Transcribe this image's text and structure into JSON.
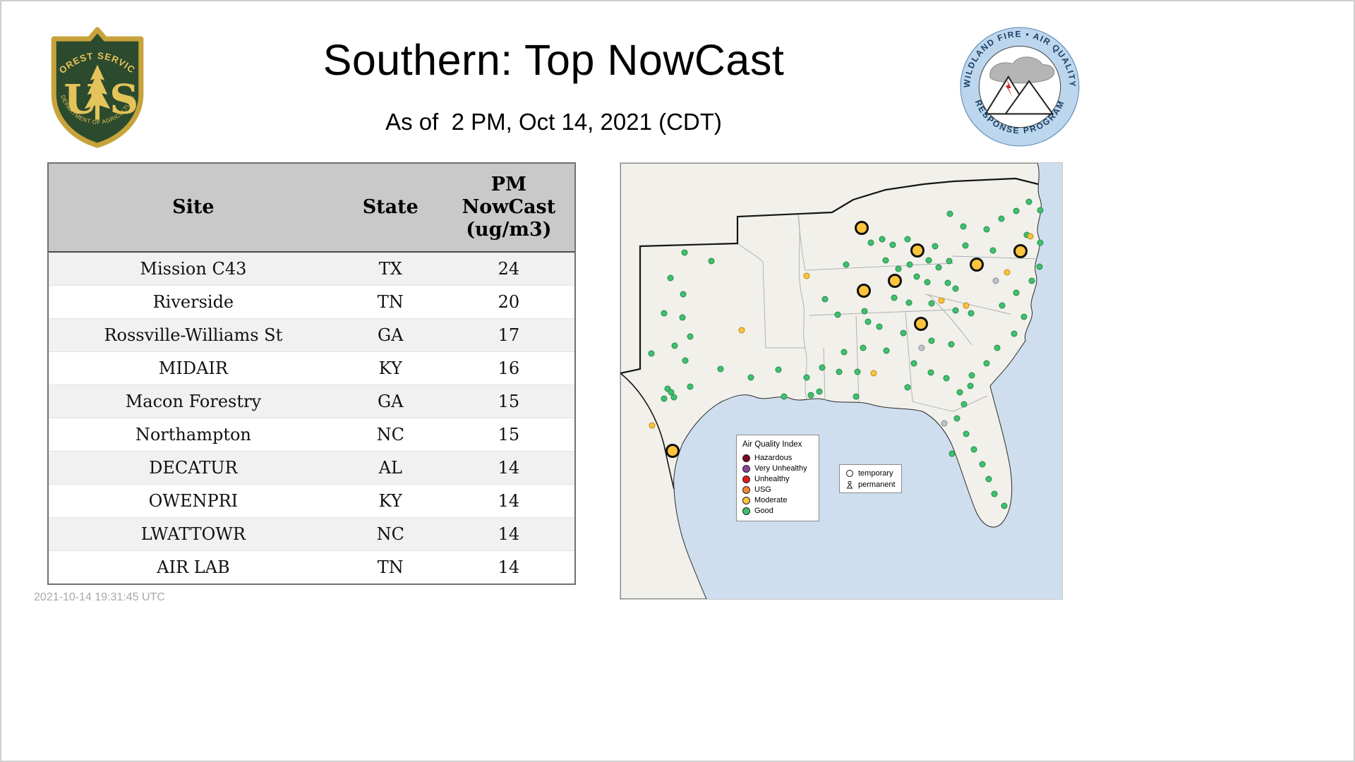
{
  "header": {
    "title": "Southern: Top NowCast",
    "subtitle": "As of  2 PM, Oct 14, 2021 (CDT)"
  },
  "logos": {
    "usfs": {
      "top_text": "FOREST SERVICE",
      "letter_u": "U",
      "letter_s": "S",
      "bottom_text": "DEPARTMENT OF AGRICULTURE"
    },
    "program": {
      "top_text": "WILDLAND FIRE • AIR QUALITY",
      "bottom_text": "RESPONSE PROGRAM"
    }
  },
  "table": {
    "columns": [
      "Site",
      "State",
      "PM\nNowCast\n(ug/m3)"
    ],
    "rows": [
      {
        "site": "Mission C43",
        "state": "TX",
        "value": "24"
      },
      {
        "site": "Riverside",
        "state": "TN",
        "value": "20"
      },
      {
        "site": "Rossville-Williams St",
        "state": "GA",
        "value": "17"
      },
      {
        "site": "MIDAIR",
        "state": "KY",
        "value": "16"
      },
      {
        "site": "Macon Forestry",
        "state": "GA",
        "value": "15"
      },
      {
        "site": "Northampton",
        "state": "NC",
        "value": "15"
      },
      {
        "site": "DECATUR",
        "state": "AL",
        "value": "14"
      },
      {
        "site": "OWENPRI",
        "state": "KY",
        "value": "14"
      },
      {
        "site": "LWATTOWR",
        "state": "NC",
        "value": "14"
      },
      {
        "site": "AIR LAB",
        "state": "TN",
        "value": "14"
      }
    ]
  },
  "map": {
    "legend": {
      "title": "Air Quality Index",
      "items": [
        {
          "label": "Hazardous",
          "color": "#7e0023"
        },
        {
          "label": "Very Unhealthy",
          "color": "#8f3f97"
        },
        {
          "label": "Unhealthy",
          "color": "#e31a1c"
        },
        {
          "label": "USG",
          "color": "#f58634"
        },
        {
          "label": "Moderate",
          "color": "#fcc33c"
        },
        {
          "label": "Good",
          "color": "#3ec16e"
        }
      ]
    },
    "symbol_legend": [
      {
        "symbol": "circle",
        "label": "temporary"
      },
      {
        "symbol": "person",
        "label": "permanent"
      }
    ],
    "aqi_colors": {
      "good": "#3ec16e",
      "moderate": "#fcc33c",
      "na": "#bcc3c9"
    },
    "dots": [
      [
        91,
        127,
        "g"
      ],
      [
        129,
        139,
        "g"
      ],
      [
        71,
        163,
        "g"
      ],
      [
        89,
        186,
        "g"
      ],
      [
        62,
        213,
        "g"
      ],
      [
        88,
        219,
        "g"
      ],
      [
        99,
        246,
        "g"
      ],
      [
        77,
        259,
        "g"
      ],
      [
        44,
        270,
        "g"
      ],
      [
        92,
        280,
        "g"
      ],
      [
        67,
        320,
        "g"
      ],
      [
        76,
        332,
        "g"
      ],
      [
        62,
        334,
        "g"
      ],
      [
        72,
        325,
        "g"
      ],
      [
        142,
        292,
        "g"
      ],
      [
        185,
        304,
        "g"
      ],
      [
        224,
        293,
        "g"
      ],
      [
        264,
        304,
        "g"
      ],
      [
        286,
        290,
        "g"
      ],
      [
        310,
        296,
        "g"
      ],
      [
        336,
        296,
        "g"
      ],
      [
        282,
        324,
        "g"
      ],
      [
        317,
        268,
        "g"
      ],
      [
        344,
        262,
        "g"
      ],
      [
        377,
        266,
        "g"
      ],
      [
        308,
        215,
        "g"
      ],
      [
        346,
        210,
        "g"
      ],
      [
        290,
        193,
        "g"
      ],
      [
        320,
        144,
        "g"
      ],
      [
        355,
        113,
        "g"
      ],
      [
        371,
        108,
        "g"
      ],
      [
        386,
        116,
        "g"
      ],
      [
        407,
        108,
        "g"
      ],
      [
        376,
        138,
        "g"
      ],
      [
        394,
        150,
        "g"
      ],
      [
        410,
        144,
        "g"
      ],
      [
        437,
        138,
        "g"
      ],
      [
        451,
        148,
        "g"
      ],
      [
        466,
        139,
        "g"
      ],
      [
        420,
        161,
        "g"
      ],
      [
        435,
        169,
        "g"
      ],
      [
        464,
        170,
        "g"
      ],
      [
        388,
        191,
        "g"
      ],
      [
        409,
        198,
        "g"
      ],
      [
        441,
        199,
        "g"
      ],
      [
        475,
        209,
        "g"
      ],
      [
        497,
        213,
        "g"
      ],
      [
        351,
        225,
        "g"
      ],
      [
        367,
        232,
        "g"
      ],
      [
        401,
        241,
        "g"
      ],
      [
        441,
        252,
        "g"
      ],
      [
        469,
        257,
        "g"
      ],
      [
        416,
        284,
        "g"
      ],
      [
        440,
        297,
        "g"
      ],
      [
        462,
        305,
        "g"
      ],
      [
        407,
        318,
        "g"
      ],
      [
        481,
        325,
        "g"
      ],
      [
        498,
        301,
        "g"
      ],
      [
        519,
        284,
        "g"
      ],
      [
        534,
        262,
        "g"
      ],
      [
        558,
        242,
        "g"
      ],
      [
        572,
        218,
        "g"
      ],
      [
        541,
        202,
        "g"
      ],
      [
        561,
        184,
        "g"
      ],
      [
        583,
        167,
        "g"
      ],
      [
        594,
        147,
        "g"
      ],
      [
        576,
        102,
        "g"
      ],
      [
        595,
        113,
        "g"
      ],
      [
        561,
        68,
        "g"
      ],
      [
        579,
        55,
        "g"
      ],
      [
        595,
        67,
        "g"
      ],
      [
        540,
        79,
        "g"
      ],
      [
        519,
        94,
        "g"
      ],
      [
        486,
        90,
        "g"
      ],
      [
        467,
        72,
        "g"
      ],
      [
        446,
        118,
        "g"
      ],
      [
        489,
        117,
        "g"
      ],
      [
        528,
        124,
        "g"
      ],
      [
        475,
        178,
        "g"
      ],
      [
        496,
        316,
        "g"
      ],
      [
        487,
        342,
        "g"
      ],
      [
        477,
        362,
        "g"
      ],
      [
        490,
        384,
        "g"
      ],
      [
        501,
        406,
        "g"
      ],
      [
        513,
        427,
        "g"
      ],
      [
        522,
        448,
        "g"
      ],
      [
        530,
        469,
        "g"
      ],
      [
        470,
        412,
        "g"
      ],
      [
        544,
        486,
        "g"
      ],
      [
        270,
        329,
        "g"
      ],
      [
        232,
        331,
        "g"
      ],
      [
        334,
        331,
        "g"
      ],
      [
        99,
        317,
        "g"
      ],
      [
        264,
        160,
        "y"
      ],
      [
        548,
        155,
        "y"
      ],
      [
        490,
        202,
        "y"
      ],
      [
        172,
        237,
        "y"
      ],
      [
        359,
        298,
        "y"
      ],
      [
        45,
        372,
        "y"
      ],
      [
        581,
        104,
        "y"
      ],
      [
        455,
        195,
        "y"
      ],
      [
        532,
        167,
        "n"
      ],
      [
        427,
        262,
        "n"
      ],
      [
        459,
        369,
        "n"
      ],
      [
        342,
        92,
        "Y"
      ],
      [
        421,
        124,
        "Y"
      ],
      [
        389,
        167,
        "Y"
      ],
      [
        345,
        181,
        "Y"
      ],
      [
        505,
        144,
        "Y"
      ],
      [
        567,
        125,
        "Y"
      ],
      [
        426,
        228,
        "Y"
      ],
      [
        74,
        408,
        "Y"
      ]
    ]
  },
  "footer": {
    "timestamp": "2021-10-14 19:31:45 UTC"
  }
}
